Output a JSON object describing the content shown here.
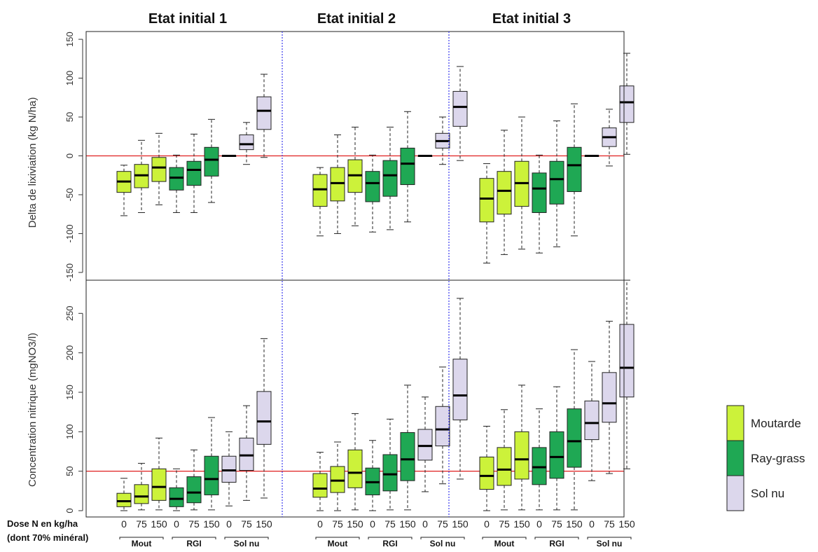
{
  "panel_titles": [
    "Etat initial 1",
    "Etat initial 2",
    "Etat initial 3"
  ],
  "dose_label_line1": "Dose N en kg/ha",
  "dose_label_line2": "(dont 70% minéral)",
  "colors": {
    "moutarde": "#ccf23a",
    "ray_grass": "#1fa854",
    "sol_nu": "#dcd7ec",
    "reference_line": "#e02020",
    "separator": "#3a3aee"
  },
  "chart_data": [
    {
      "type": "box",
      "ylabel": "Delta de lixiviation (kg N/ha)",
      "ylim": [
        -160,
        160
      ],
      "yticks": [
        -150,
        -100,
        -50,
        0,
        50,
        100,
        150
      ],
      "reference_y": 0,
      "categories": [
        "0",
        "75",
        "150",
        "0",
        "75",
        "150",
        "0",
        "75",
        "150"
      ],
      "groups": [
        "Mout",
        "RGI",
        "Sol nu"
      ],
      "legend": [
        "Moutarde",
        "Ray-grass",
        "Sol nu"
      ],
      "panels": [
        {
          "title": "Etat initial 1",
          "boxes": [
            {
              "group": "Moutarde",
              "dose": "0",
              "min": -77,
              "q1": -47,
              "median": -33,
              "q3": -20,
              "max": -12
            },
            {
              "group": "Moutarde",
              "dose": "75",
              "min": -73,
              "q1": -41,
              "median": -25,
              "q3": -11,
              "max": 20
            },
            {
              "group": "Moutarde",
              "dose": "150",
              "min": -63,
              "q1": -33,
              "median": -15,
              "q3": -2,
              "max": 29
            },
            {
              "group": "Ray-grass",
              "dose": "0",
              "min": -73,
              "q1": -44,
              "median": -28,
              "q3": -15,
              "max": 1
            },
            {
              "group": "Ray-grass",
              "dose": "75",
              "min": -73,
              "q1": -38,
              "median": -18,
              "q3": -7,
              "max": 28
            },
            {
              "group": "Ray-grass",
              "dose": "150",
              "min": -60,
              "q1": -26,
              "median": -5,
              "q3": 11,
              "max": 47
            },
            {
              "group": "Sol nu",
              "dose": "0",
              "min": 0,
              "q1": 0,
              "median": 0,
              "q3": 0,
              "max": 0
            },
            {
              "group": "Sol nu",
              "dose": "75",
              "min": -11,
              "q1": 8,
              "median": 15,
              "q3": 27,
              "max": 43
            },
            {
              "group": "Sol nu",
              "dose": "150",
              "min": -2,
              "q1": 34,
              "median": 58,
              "q3": 76,
              "max": 105
            }
          ]
        },
        {
          "title": "Etat initial 2",
          "boxes": [
            {
              "group": "Moutarde",
              "dose": "0",
              "min": -103,
              "q1": -65,
              "median": -43,
              "q3": -24,
              "max": -15
            },
            {
              "group": "Moutarde",
              "dose": "75",
              "min": -100,
              "q1": -58,
              "median": -35,
              "q3": -15,
              "max": 27
            },
            {
              "group": "Moutarde",
              "dose": "150",
              "min": -90,
              "q1": -47,
              "median": -25,
              "q3": -5,
              "max": 37
            },
            {
              "group": "Ray-grass",
              "dose": "0",
              "min": -98,
              "q1": -59,
              "median": -35,
              "q3": -20,
              "max": 1
            },
            {
              "group": "Ray-grass",
              "dose": "75",
              "min": -95,
              "q1": -52,
              "median": -25,
              "q3": -6,
              "max": 37
            },
            {
              "group": "Ray-grass",
              "dose": "150",
              "min": -85,
              "q1": -37,
              "median": -10,
              "q3": 10,
              "max": 57
            },
            {
              "group": "Sol nu",
              "dose": "0",
              "min": 0,
              "q1": 0,
              "median": 0,
              "q3": 0,
              "max": 0
            },
            {
              "group": "Sol nu",
              "dose": "75",
              "min": -11,
              "q1": 10,
              "median": 19,
              "q3": 29,
              "max": 50
            },
            {
              "group": "Sol nu",
              "dose": "150",
              "min": -6,
              "q1": 38,
              "median": 63,
              "q3": 83,
              "max": 115
            }
          ]
        },
        {
          "title": "Etat initial 3",
          "boxes": [
            {
              "group": "Moutarde",
              "dose": "0",
              "min": -138,
              "q1": -85,
              "median": -55,
              "q3": -29,
              "max": -10
            },
            {
              "group": "Moutarde",
              "dose": "75",
              "min": -127,
              "q1": -75,
              "median": -45,
              "q3": -20,
              "max": 33
            },
            {
              "group": "Moutarde",
              "dose": "150",
              "min": -120,
              "q1": -65,
              "median": -35,
              "q3": -7,
              "max": 50
            },
            {
              "group": "Ray-grass",
              "dose": "0",
              "min": -125,
              "q1": -73,
              "median": -42,
              "q3": -22,
              "max": 1
            },
            {
              "group": "Ray-grass",
              "dose": "75",
              "min": -117,
              "q1": -62,
              "median": -30,
              "q3": -7,
              "max": 45
            },
            {
              "group": "Ray-grass",
              "dose": "150",
              "min": -103,
              "q1": -46,
              "median": -12,
              "q3": 11,
              "max": 67
            },
            {
              "group": "Sol nu",
              "dose": "0",
              "min": 0,
              "q1": 0,
              "median": 0,
              "q3": 0,
              "max": 0
            },
            {
              "group": "Sol nu",
              "dose": "75",
              "min": -13,
              "q1": 12,
              "median": 24,
              "q3": 36,
              "max": 60
            },
            {
              "group": "Sol nu",
              "dose": "150",
              "min": 2,
              "q1": 43,
              "median": 69,
              "q3": 90,
              "max": 132
            }
          ]
        }
      ]
    },
    {
      "type": "box",
      "ylabel": "Concentration nitrique (mgNO3/l)",
      "ylim": [
        -8,
        292
      ],
      "yticks": [
        0,
        50,
        100,
        150,
        200,
        250
      ],
      "reference_y": 50,
      "categories": [
        "0",
        "75",
        "150",
        "0",
        "75",
        "150",
        "0",
        "75",
        "150"
      ],
      "groups": [
        "Mout",
        "RGI",
        "Sol nu"
      ],
      "legend": [
        "Moutarde",
        "Ray-grass",
        "Sol nu"
      ],
      "panels": [
        {
          "title": "Etat initial 1",
          "boxes": [
            {
              "group": "Moutarde",
              "dose": "0",
              "min": 0,
              "q1": 5,
              "median": 12,
              "q3": 22,
              "max": 41
            },
            {
              "group": "Moutarde",
              "dose": "75",
              "min": 1,
              "q1": 9,
              "median": 18,
              "q3": 33,
              "max": 60
            },
            {
              "group": "Moutarde",
              "dose": "150",
              "min": 1,
              "q1": 13,
              "median": 30,
              "q3": 53,
              "max": 92
            },
            {
              "group": "Ray-grass",
              "dose": "0",
              "min": 0,
              "q1": 5,
              "median": 15,
              "q3": 29,
              "max": 53
            },
            {
              "group": "Ray-grass",
              "dose": "75",
              "min": 1,
              "q1": 10,
              "median": 23,
              "q3": 43,
              "max": 77
            },
            {
              "group": "Ray-grass",
              "dose": "150",
              "min": 1,
              "q1": 20,
              "median": 40,
              "q3": 69,
              "max": 118
            },
            {
              "group": "Sol nu",
              "dose": "0",
              "min": 6,
              "q1": 36,
              "median": 51,
              "q3": 69,
              "max": 100
            },
            {
              "group": "Sol nu",
              "dose": "75",
              "min": 13,
              "q1": 51,
              "median": 70,
              "q3": 92,
              "max": 133
            },
            {
              "group": "Sol nu",
              "dose": "150",
              "min": 16,
              "q1": 84,
              "median": 113,
              "q3": 151,
              "max": 218
            }
          ]
        },
        {
          "title": "Etat initial 2",
          "boxes": [
            {
              "group": "Moutarde",
              "dose": "0",
              "min": 0,
              "q1": 17,
              "median": 28,
              "q3": 47,
              "max": 74
            },
            {
              "group": "Moutarde",
              "dose": "75",
              "min": 0,
              "q1": 23,
              "median": 38,
              "q3": 56,
              "max": 87
            },
            {
              "group": "Moutarde",
              "dose": "150",
              "min": 1,
              "q1": 29,
              "median": 48,
              "q3": 77,
              "max": 123
            },
            {
              "group": "Ray-grass",
              "dose": "0",
              "min": 0,
              "q1": 20,
              "median": 36,
              "q3": 54,
              "max": 89
            },
            {
              "group": "Ray-grass",
              "dose": "75",
              "min": 1,
              "q1": 25,
              "median": 46,
              "q3": 71,
              "max": 116
            },
            {
              "group": "Ray-grass",
              "dose": "150",
              "min": 1,
              "q1": 38,
              "median": 65,
              "q3": 99,
              "max": 159
            },
            {
              "group": "Sol nu",
              "dose": "0",
              "min": 24,
              "q1": 64,
              "median": 82,
              "q3": 103,
              "max": 144
            },
            {
              "group": "Sol nu",
              "dose": "75",
              "min": 34,
              "q1": 82,
              "median": 103,
              "q3": 132,
              "max": 182
            },
            {
              "group": "Sol nu",
              "dose": "150",
              "min": 40,
              "q1": 115,
              "median": 146,
              "q3": 192,
              "max": 269
            }
          ]
        },
        {
          "title": "Etat initial 3",
          "boxes": [
            {
              "group": "Moutarde",
              "dose": "0",
              "min": 0,
              "q1": 27,
              "median": 44,
              "q3": 68,
              "max": 107
            },
            {
              "group": "Moutarde",
              "dose": "75",
              "min": 1,
              "q1": 32,
              "median": 52,
              "q3": 80,
              "max": 128
            },
            {
              "group": "Moutarde",
              "dose": "150",
              "min": 1,
              "q1": 40,
              "median": 65,
              "q3": 100,
              "max": 159
            },
            {
              "group": "Ray-grass",
              "dose": "0",
              "min": 1,
              "q1": 33,
              "median": 55,
              "q3": 80,
              "max": 129
            },
            {
              "group": "Ray-grass",
              "dose": "75",
              "min": 1,
              "q1": 41,
              "median": 68,
              "q3": 100,
              "max": 157
            },
            {
              "group": "Ray-grass",
              "dose": "150",
              "min": 1,
              "q1": 55,
              "median": 88,
              "q3": 129,
              "max": 204
            },
            {
              "group": "Sol nu",
              "dose": "0",
              "min": 38,
              "q1": 90,
              "median": 111,
              "q3": 139,
              "max": 189
            },
            {
              "group": "Sol nu",
              "dose": "75",
              "min": 47,
              "q1": 112,
              "median": 136,
              "q3": 175,
              "max": 240
            },
            {
              "group": "Sol nu",
              "dose": "150",
              "min": 53,
              "q1": 144,
              "median": 181,
              "q3": 236,
              "max": 292
            }
          ]
        }
      ]
    }
  ]
}
